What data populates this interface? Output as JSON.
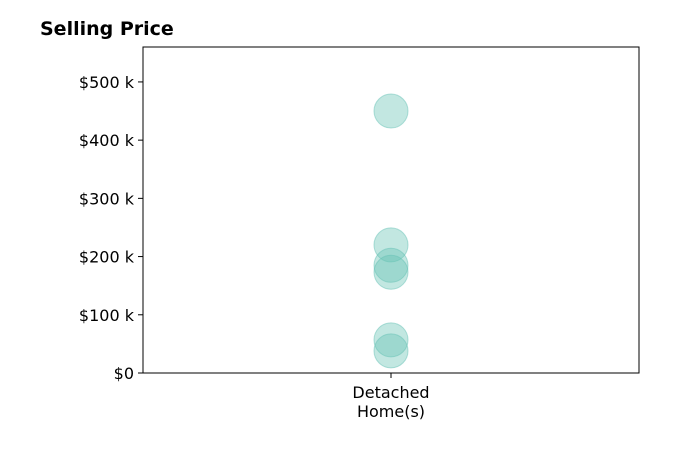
{
  "chart_data": {
    "type": "scatter",
    "title": "Selling Price",
    "xlabel": "",
    "ylabel": "",
    "categories": [
      "Detached Home(s)"
    ],
    "category_lines": [
      [
        "Detached",
        "Home(s)"
      ]
    ],
    "series": [
      {
        "category": "Detached Home(s)",
        "values": [
          450000,
          220000,
          185000,
          173000,
          57000,
          38000
        ]
      }
    ],
    "ylim": [
      0,
      560000
    ],
    "yticks": [
      0,
      100000,
      200000,
      300000,
      400000,
      500000
    ],
    "ytick_labels": [
      "$0",
      "$100 k",
      "$200 k",
      "$300 k",
      "$400 k",
      "$500 k"
    ],
    "grid": false,
    "legend": "none",
    "marker_color": "#66c2b5",
    "marker_opacity": 0.4
  }
}
